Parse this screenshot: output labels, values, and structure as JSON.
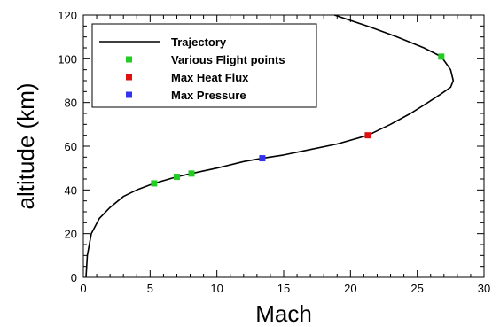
{
  "chart_data": {
    "type": "line",
    "xlabel": "Mach",
    "ylabel": "altitude (km)",
    "xlim": [
      0,
      30
    ],
    "ylim": [
      0,
      120
    ],
    "xticks": [
      0,
      5,
      10,
      15,
      20,
      25,
      30
    ],
    "yticks": [
      0,
      20,
      40,
      60,
      80,
      100,
      120
    ],
    "x_minor_step": 1,
    "y_minor_step": 5,
    "grid": false,
    "legend_position": "top-left",
    "series": [
      {
        "name": "Trajectory",
        "kind": "line",
        "color": "#000000",
        "points": [
          [
            0.2,
            0
          ],
          [
            0.3,
            10
          ],
          [
            0.6,
            20
          ],
          [
            1.2,
            27
          ],
          [
            2.0,
            32
          ],
          [
            3.0,
            37
          ],
          [
            4.0,
            40
          ],
          [
            5.3,
            43
          ],
          [
            7.0,
            46
          ],
          [
            8.1,
            47.5
          ],
          [
            10.0,
            50
          ],
          [
            12.0,
            53
          ],
          [
            13.4,
            54.5
          ],
          [
            15.0,
            56
          ],
          [
            17.0,
            58.5
          ],
          [
            19.0,
            61
          ],
          [
            21.3,
            65
          ],
          [
            23.0,
            70
          ],
          [
            24.5,
            75
          ],
          [
            25.8,
            80
          ],
          [
            26.8,
            84
          ],
          [
            27.5,
            87
          ],
          [
            27.7,
            90
          ],
          [
            27.5,
            95
          ],
          [
            26.8,
            101
          ],
          [
            25.5,
            105
          ],
          [
            23.5,
            110
          ],
          [
            21.5,
            114.5
          ],
          [
            18.8,
            120
          ]
        ]
      },
      {
        "name": "Various Flight points",
        "kind": "marker",
        "color": "#22cc22",
        "points": [
          [
            5.3,
            43
          ],
          [
            7.0,
            46
          ],
          [
            8.1,
            47.5
          ],
          [
            26.8,
            101
          ]
        ]
      },
      {
        "name": "Max Heat Flux",
        "kind": "marker",
        "color": "#dd1111",
        "points": [
          [
            21.3,
            65
          ]
        ]
      },
      {
        "name": "Max Pressure",
        "kind": "marker",
        "color": "#3333ee",
        "points": [
          [
            13.4,
            54.5
          ]
        ]
      }
    ]
  }
}
